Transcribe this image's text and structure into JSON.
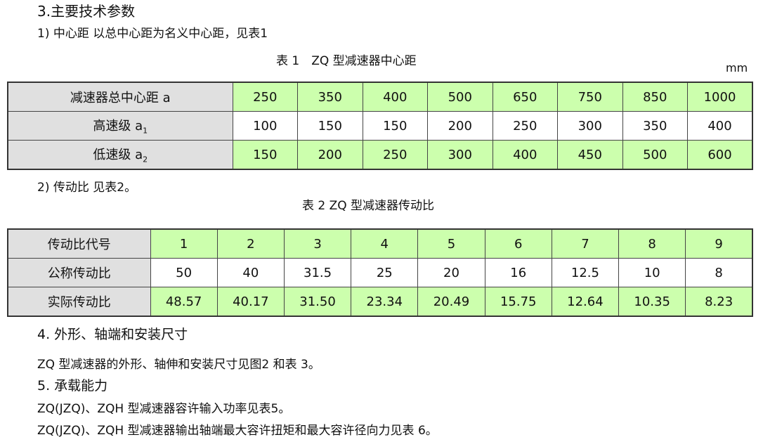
{
  "section3_title": "3.主要技术参数",
  "item1": "1) 中心距 以总中心距为名义中心距，见表1",
  "table1": {
    "caption": "表 1　ZQ 型减速器中心距",
    "unit": "mm",
    "rows": [
      {
        "label": "减速器总中心距 a",
        "sub": "",
        "values": [
          "250",
          "350",
          "400",
          "500",
          "650",
          "750",
          "850",
          "1000"
        ]
      },
      {
        "label": "高速级 a",
        "sub": "1",
        "values": [
          "100",
          "150",
          "150",
          "200",
          "250",
          "300",
          "350",
          "400"
        ]
      },
      {
        "label": "低速级 a",
        "sub": "2",
        "values": [
          "150",
          "200",
          "250",
          "300",
          "400",
          "450",
          "500",
          "600"
        ]
      }
    ]
  },
  "item2": "2) 传动比 见表2。",
  "table2": {
    "caption": "表 2  ZQ 型减速器传动比",
    "rows": [
      {
        "label": "传动比代号",
        "values": [
          "1",
          "2",
          "3",
          "4",
          "5",
          "6",
          "7",
          "8",
          "9"
        ]
      },
      {
        "label": "公称传动比",
        "values": [
          "50",
          "40",
          "31.5",
          "25",
          "20",
          "16",
          "12.5",
          "10",
          "8"
        ]
      },
      {
        "label": "实际传动比",
        "values": [
          "48.57",
          "40.17",
          "31.50",
          "23.34",
          "20.49",
          "15.75",
          "12.64",
          "10.35",
          "8.23"
        ]
      }
    ]
  },
  "section4_title": "4. 外形、轴端和安装尺寸",
  "section4_text": "ZQ 型减速器的外形、轴伸和安装尺寸见图2 和表 3。",
  "section5_title": "5. 承载能力",
  "section5_line1": "ZQ(JZQ)、ZQH 型减速器容许输入功率见表5。",
  "section5_line2": "ZQ(JZQ)、ZQH 型减速器输出轴端最大容许扭矩和最大容许径向力见表 6。",
  "colors": {
    "header_gray": "#e0e0e0",
    "highlight_green": "#ccffad"
  }
}
